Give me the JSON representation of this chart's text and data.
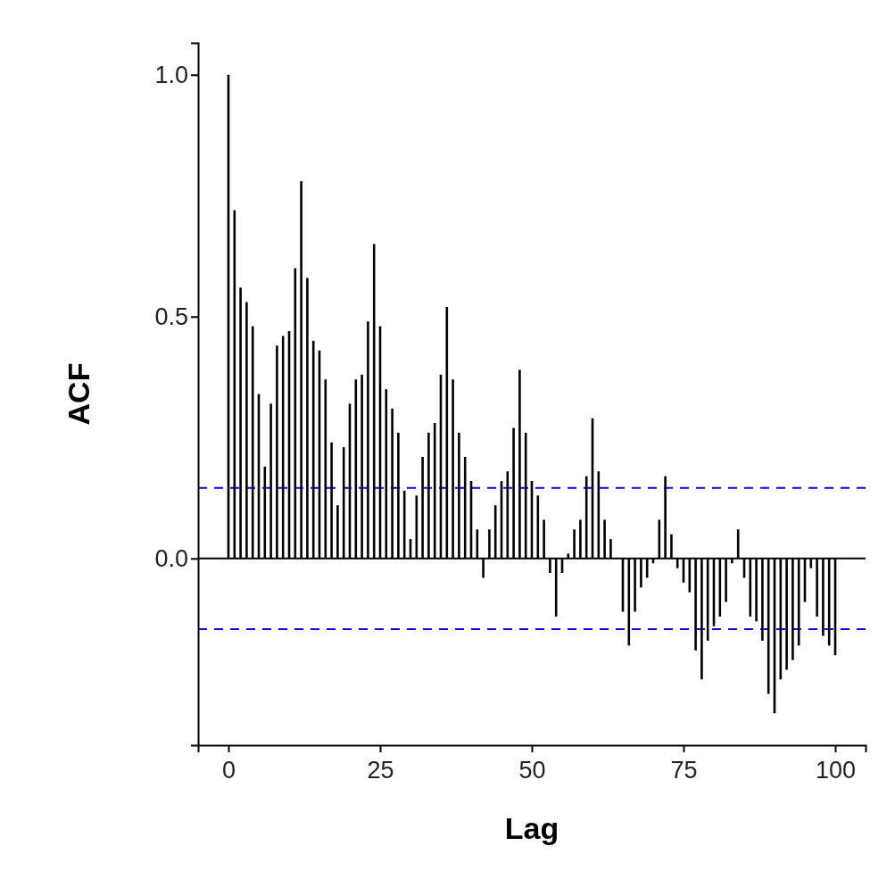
{
  "chart_data": {
    "type": "bar",
    "xlabel": "Lag",
    "ylabel": "ACF",
    "x": [
      0,
      1,
      2,
      3,
      4,
      5,
      6,
      7,
      8,
      9,
      10,
      11,
      12,
      13,
      14,
      15,
      16,
      17,
      18,
      19,
      20,
      21,
      22,
      23,
      24,
      25,
      26,
      27,
      28,
      29,
      30,
      31,
      32,
      33,
      34,
      35,
      36,
      37,
      38,
      39,
      40,
      41,
      42,
      43,
      44,
      45,
      46,
      47,
      48,
      49,
      50,
      51,
      52,
      53,
      54,
      55,
      56,
      57,
      58,
      59,
      60,
      61,
      62,
      63,
      64,
      65,
      66,
      67,
      68,
      69,
      70,
      71,
      72,
      73,
      74,
      75,
      76,
      77,
      78,
      79,
      80,
      81,
      82,
      83,
      84,
      85,
      86,
      87,
      88,
      89,
      90,
      91,
      92,
      93,
      94,
      95,
      96,
      97,
      98,
      99,
      100
    ],
    "values": [
      1.0,
      0.72,
      0.56,
      0.53,
      0.48,
      0.34,
      0.19,
      0.32,
      0.44,
      0.46,
      0.47,
      0.6,
      0.78,
      0.58,
      0.45,
      0.43,
      0.37,
      0.24,
      0.11,
      0.23,
      0.32,
      0.37,
      0.38,
      0.49,
      0.65,
      0.48,
      0.35,
      0.31,
      0.26,
      0.14,
      0.04,
      0.13,
      0.21,
      0.26,
      0.28,
      0.38,
      0.52,
      0.37,
      0.26,
      0.21,
      0.16,
      0.06,
      -0.04,
      0.06,
      0.11,
      0.16,
      0.18,
      0.27,
      0.39,
      0.26,
      0.16,
      0.13,
      0.08,
      -0.03,
      -0.12,
      -0.03,
      0.01,
      0.06,
      0.08,
      0.17,
      0.29,
      0.18,
      0.08,
      0.04,
      0,
      -0.11,
      -0.18,
      -0.11,
      -0.06,
      -0.04,
      -0.01,
      0.08,
      0.17,
      0.05,
      -0.02,
      -0.05,
      -0.07,
      -0.19,
      -0.25,
      -0.17,
      -0.14,
      -0.12,
      -0.09,
      -0.01,
      0.06,
      -0.04,
      -0.12,
      -0.13,
      -0.17,
      -0.28,
      -0.32,
      -0.25,
      -0.23,
      -0.21,
      -0.18,
      -0.09,
      -0.02,
      -0.12,
      -0.16,
      -0.18,
      -0.2
    ],
    "color": "#000000",
    "xlim": [
      -5,
      105
    ],
    "xticks": [
      0,
      25,
      50,
      75,
      100
    ],
    "ylim": [
      -0.386,
      1.066
    ],
    "yticks": [
      {
        "value": 0,
        "label": "0.0"
      },
      {
        "value": 0.5,
        "label": "0.5"
      },
      {
        "value": 1,
        "label": "1.0"
      }
    ],
    "ref_lines": [
      {
        "axis": "y",
        "value": 0,
        "color": "#000000",
        "line_style": "solid"
      },
      {
        "axis": "y",
        "value": 0.146,
        "color": "#0000ff",
        "line_style": "dashed"
      },
      {
        "axis": "y",
        "value": -0.146,
        "color": "#0000ff",
        "line_style": "dashed"
      }
    ],
    "grid": false
  }
}
